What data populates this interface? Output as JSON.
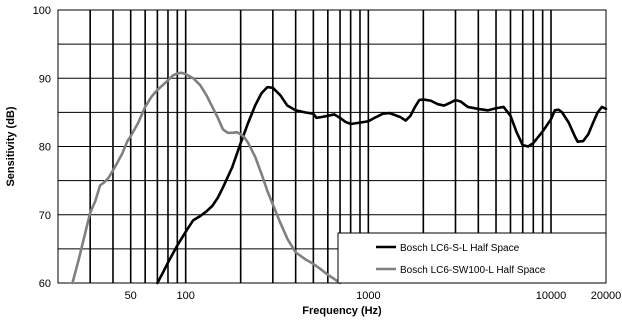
{
  "chart_data": {
    "type": "line",
    "xscale": "log",
    "xlim": [
      20,
      20000
    ],
    "ylim": [
      60,
      100
    ],
    "xlabel": "Frequency (Hz)",
    "ylabel": "Sensitivity (dB)",
    "x_tick_labels": [
      {
        "value": 50,
        "label": "50"
      },
      {
        "value": 100,
        "label": "100"
      },
      {
        "value": 1000,
        "label": "1000"
      },
      {
        "value": 10000,
        "label": "10000"
      },
      {
        "value": 20000,
        "label": "20000"
      }
    ],
    "y_tick_labels": [
      {
        "value": 60,
        "label": "60"
      },
      {
        "value": 70,
        "label": "70"
      },
      {
        "value": 80,
        "label": "80"
      },
      {
        "value": 90,
        "label": "90"
      },
      {
        "value": 100,
        "label": "100"
      }
    ],
    "grid": {
      "horizontal": true,
      "vertical_log_minor": true
    },
    "legend_position": "bottom-right",
    "series": [
      {
        "name": "Bosch LC6-S-L Half Space",
        "color": "#000000",
        "points": [
          [
            70,
            60
          ],
          [
            75,
            61.5
          ],
          [
            80,
            63
          ],
          [
            90,
            65.5
          ],
          [
            100,
            67.5
          ],
          [
            110,
            69.2
          ],
          [
            120,
            69.8
          ],
          [
            130,
            70.5
          ],
          [
            140,
            71.3
          ],
          [
            150,
            72.5
          ],
          [
            160,
            74
          ],
          [
            180,
            77
          ],
          [
            200,
            80.5
          ],
          [
            220,
            83.5
          ],
          [
            240,
            86
          ],
          [
            260,
            87.8
          ],
          [
            280,
            88.7
          ],
          [
            300,
            88.6
          ],
          [
            330,
            87.5
          ],
          [
            360,
            86
          ],
          [
            400,
            85.3
          ],
          [
            450,
            85
          ],
          [
            500,
            84.8
          ],
          [
            520,
            84.2
          ],
          [
            550,
            84.3
          ],
          [
            600,
            84.5
          ],
          [
            650,
            84.7
          ],
          [
            700,
            84.2
          ],
          [
            750,
            83.6
          ],
          [
            800,
            83.3
          ],
          [
            900,
            83.5
          ],
          [
            1000,
            83.7
          ],
          [
            1100,
            84.3
          ],
          [
            1200,
            84.8
          ],
          [
            1300,
            84.9
          ],
          [
            1400,
            84.6
          ],
          [
            1500,
            84.3
          ],
          [
            1600,
            83.8
          ],
          [
            1700,
            84.5
          ],
          [
            1800,
            85.8
          ],
          [
            1900,
            86.8
          ],
          [
            2000,
            86.9
          ],
          [
            2200,
            86.7
          ],
          [
            2400,
            86.2
          ],
          [
            2600,
            86
          ],
          [
            2800,
            86.4
          ],
          [
            3000,
            86.8
          ],
          [
            3200,
            86.6
          ],
          [
            3500,
            85.8
          ],
          [
            4000,
            85.5
          ],
          [
            4500,
            85.3
          ],
          [
            5000,
            85.6
          ],
          [
            5500,
            85.8
          ],
          [
            6000,
            84.5
          ],
          [
            6500,
            82
          ],
          [
            7000,
            80.2
          ],
          [
            7500,
            80
          ],
          [
            8000,
            80.5
          ],
          [
            9000,
            82.2
          ],
          [
            10000,
            84
          ],
          [
            10500,
            85.3
          ],
          [
            11000,
            85.4
          ],
          [
            11500,
            85
          ],
          [
            12500,
            83.5
          ],
          [
            13500,
            81.5
          ],
          [
            14000,
            80.7
          ],
          [
            15000,
            80.8
          ],
          [
            16000,
            81.8
          ],
          [
            17000,
            83.5
          ],
          [
            18000,
            85
          ],
          [
            19000,
            85.8
          ],
          [
            20000,
            85.5
          ]
        ]
      },
      {
        "name": "Bosch LC6-SW100-L Half Space",
        "color": "#808080",
        "points": [
          [
            24,
            60
          ],
          [
            26,
            63.5
          ],
          [
            28,
            67
          ],
          [
            30,
            70.3
          ],
          [
            32,
            72
          ],
          [
            34,
            74.3
          ],
          [
            36,
            74.8
          ],
          [
            38,
            75.5
          ],
          [
            40,
            76.5
          ],
          [
            42,
            77.5
          ],
          [
            45,
            79
          ],
          [
            48,
            80.8
          ],
          [
            50,
            81.5
          ],
          [
            55,
            83.5
          ],
          [
            60,
            85.8
          ],
          [
            65,
            87.3
          ],
          [
            70,
            88.3
          ],
          [
            75,
            89
          ],
          [
            80,
            89.7
          ],
          [
            85,
            90.4
          ],
          [
            90,
            90.7
          ],
          [
            95,
            90.8
          ],
          [
            100,
            90.6
          ],
          [
            110,
            90
          ],
          [
            120,
            89
          ],
          [
            130,
            87.5
          ],
          [
            140,
            85.8
          ],
          [
            150,
            84.2
          ],
          [
            160,
            82.5
          ],
          [
            170,
            82
          ],
          [
            180,
            82
          ],
          [
            190,
            82.1
          ],
          [
            200,
            81.8
          ],
          [
            210,
            81.3
          ],
          [
            220,
            80.5
          ],
          [
            240,
            78.5
          ],
          [
            260,
            76
          ],
          [
            280,
            73.5
          ],
          [
            300,
            71.5
          ],
          [
            330,
            68.8
          ],
          [
            360,
            66.5
          ],
          [
            400,
            64.5
          ],
          [
            450,
            63.5
          ],
          [
            500,
            62.8
          ],
          [
            550,
            62
          ],
          [
            600,
            61.2
          ],
          [
            650,
            60.6
          ],
          [
            700,
            60
          ]
        ]
      }
    ]
  }
}
